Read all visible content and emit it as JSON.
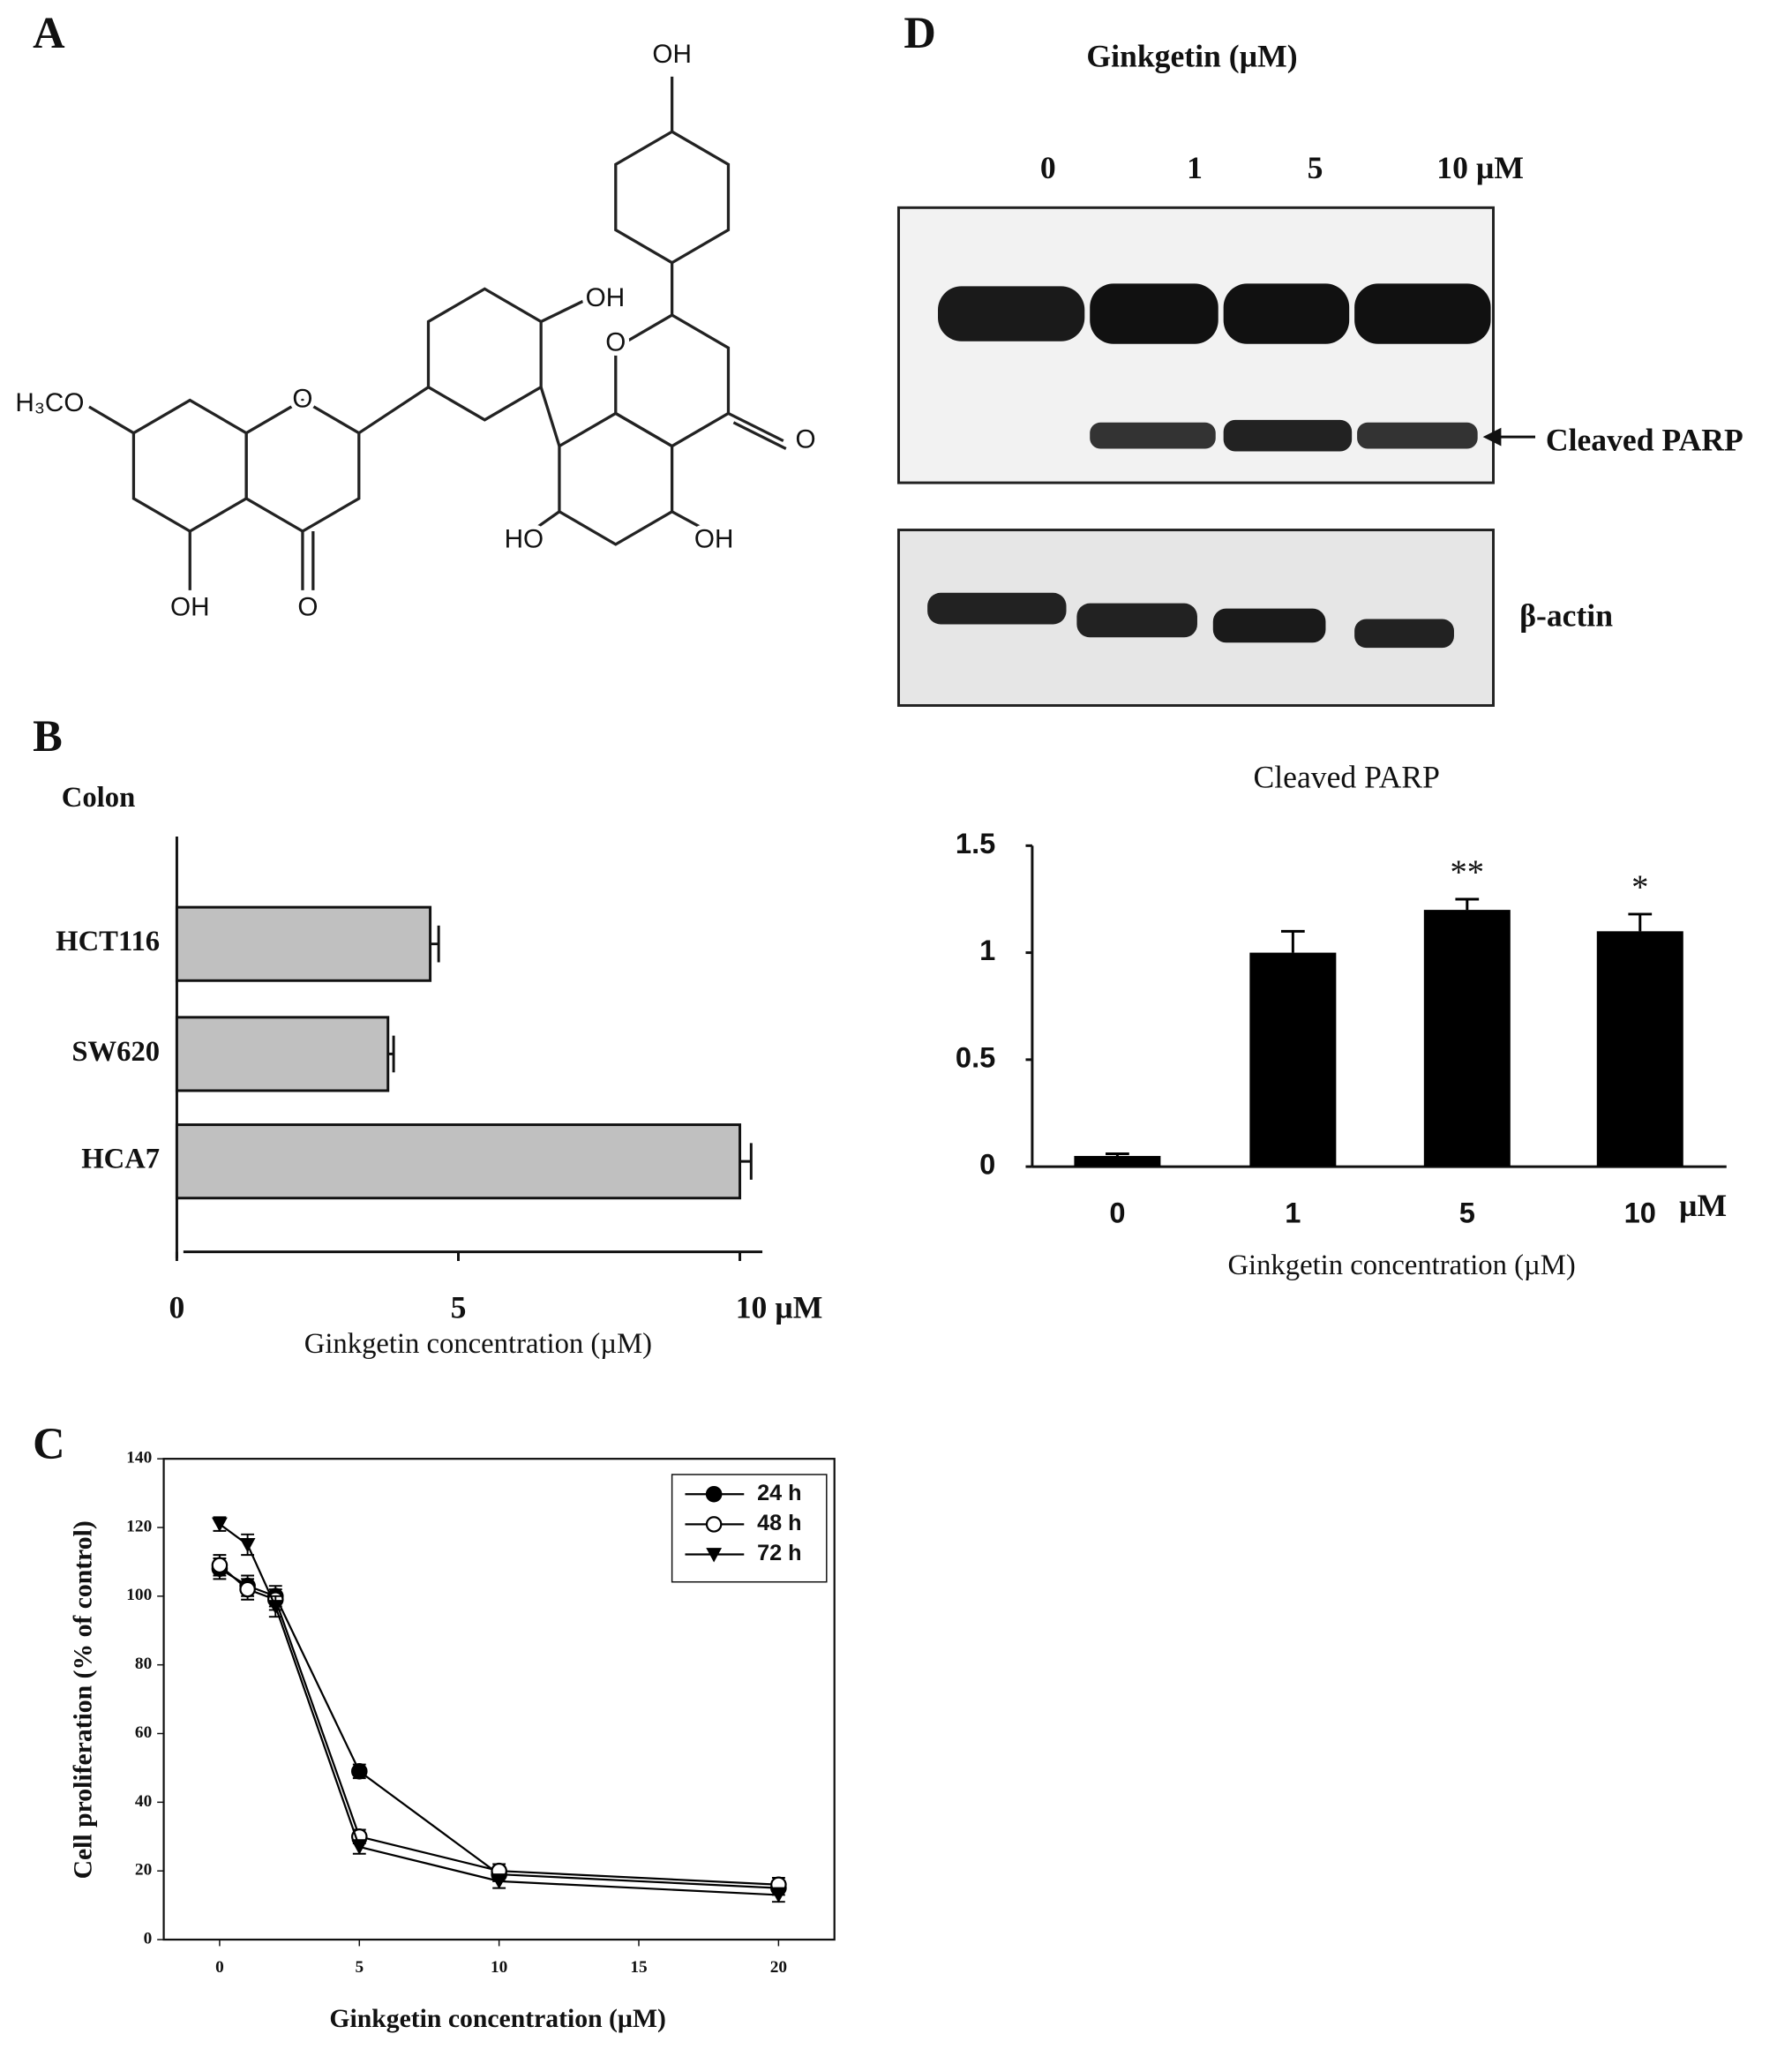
{
  "panel_labels": [
    "A",
    "B",
    "C",
    "D"
  ],
  "structure": {
    "labels": [
      "OH",
      "OH",
      "O",
      "O",
      "O",
      "H₃CO",
      "HO",
      "OH",
      "OH",
      "O"
    ]
  },
  "blot": {
    "title": "Ginkgetin (µM)",
    "lanes": [
      "0",
      "1",
      "5",
      "10 µM"
    ],
    "bands": [
      "Cleaved PARP",
      "β-actin"
    ]
  },
  "chart_data": [
    {
      "type": "hbar",
      "title": "Colon",
      "categories": [
        "HCT116",
        "SW620",
        "HCA7"
      ],
      "values": [
        4.5,
        3.75,
        10
      ],
      "errors": [
        0.15,
        0.1,
        0.2
      ],
      "color": "#c0c0c0",
      "xlim": [
        0,
        10.4
      ],
      "xticks": [
        0,
        5,
        {
          "value": 10,
          "label": "10 µM"
        }
      ],
      "xlabel": "Ginkgetin concentration (µM)"
    },
    {
      "type": "line",
      "x": [
        0,
        1,
        2,
        5,
        10,
        20
      ],
      "series": [
        {
          "name": "24 h",
          "marker": "circle-filled",
          "values": [
            108,
            103,
            100,
            49,
            19,
            15
          ],
          "errors": [
            3,
            3,
            3,
            2,
            2,
            2
          ]
        },
        {
          "name": "48 h",
          "marker": "circle-open",
          "values": [
            109,
            102,
            99,
            30,
            20,
            16
          ],
          "errors": [
            3,
            3,
            3,
            2,
            2,
            2
          ]
        },
        {
          "name": "72 h",
          "marker": "triangle-down",
          "values": [
            121,
            115,
            97,
            27,
            17,
            13
          ],
          "errors": [
            2,
            3,
            3,
            2,
            2,
            2
          ]
        }
      ],
      "color": "#000000",
      "xlim": [
        -2,
        22
      ],
      "ylim": [
        0,
        140
      ],
      "xticks": [
        0,
        5,
        10,
        15,
        20
      ],
      "yticks": [
        0,
        20,
        40,
        60,
        80,
        100,
        120,
        140
      ],
      "xlabel": "Ginkgetin concentration (µM)",
      "ylabel": "Cell proliferation (% of control)",
      "legend": "upper-right"
    },
    {
      "type": "bar",
      "title": "Cleaved PARP",
      "categories": [
        "0",
        "1",
        "5",
        "10"
      ],
      "x_unit": "µM",
      "values": [
        0.05,
        1,
        1.2,
        1.1
      ],
      "errors": [
        0.01,
        0.1,
        0.05,
        0.08
      ],
      "color": "#000000",
      "annotations": [
        {
          "text": "**",
          "category": "5"
        },
        {
          "text": "*",
          "category": "10"
        }
      ],
      "ylim": [
        0,
        1.5
      ],
      "yticks": [
        0,
        0.5,
        1,
        1.5
      ],
      "xlabel": "Ginkgetin concentration (µM)"
    }
  ]
}
